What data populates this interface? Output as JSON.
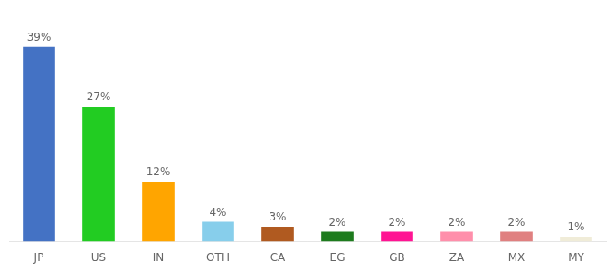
{
  "chart_data": {
    "type": "bar",
    "categories": [
      "JP",
      "US",
      "IN",
      "OTH",
      "CA",
      "EG",
      "GB",
      "ZA",
      "MX",
      "MY"
    ],
    "values": [
      39,
      27,
      12,
      4,
      3,
      2,
      2,
      2,
      2,
      1
    ],
    "value_labels": [
      "39%",
      "27%",
      "12%",
      "4%",
      "3%",
      "2%",
      "2%",
      "2%",
      "2%",
      "1%"
    ],
    "colors": [
      "#4472C4",
      "#22CC22",
      "#FFA500",
      "#87CEEB",
      "#B05A20",
      "#1E7B1E",
      "#FF1493",
      "#FF8FAB",
      "#E08080",
      "#F0ECD8"
    ],
    "ylim": [
      0,
      44
    ],
    "data_labels": true,
    "tick_labels": "x",
    "grid": false
  }
}
